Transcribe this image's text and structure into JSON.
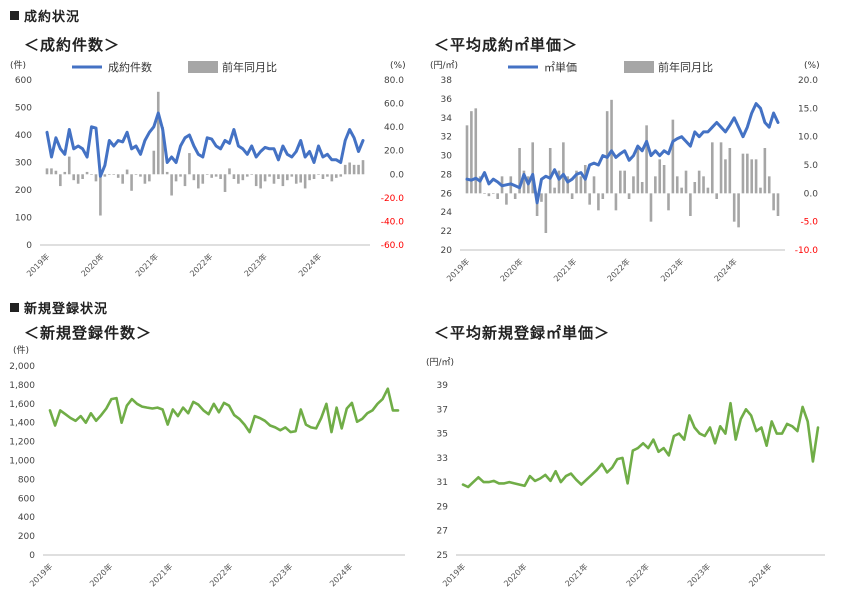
{
  "sections": {
    "contract": "成約状況",
    "registration": "新規登録状況"
  },
  "chart_data": [
    {
      "type": "line+bar",
      "title": "＜成約件数＞",
      "left_unit": "(件)",
      "right_unit": "(%)",
      "line_color": "#4472C4",
      "bar_color": "#A6A6A6",
      "legend": {
        "line": "成約件数",
        "bar": "前年同月比"
      },
      "ylim": [
        0,
        600
      ],
      "yticks": [
        "0",
        "100",
        "200",
        "300",
        "400",
        "500",
        "600"
      ],
      "y2lim": [
        -60,
        80
      ],
      "y2ticks": [
        "-60.0",
        "-40.0",
        "-20.0",
        "0.0",
        "20.0",
        "40.0",
        "60.0",
        "80.0"
      ],
      "x_labels": [
        "2019年",
        "2020年",
        "2021年",
        "2022年",
        "2023年",
        "2024年"
      ],
      "line": [
        410,
        320,
        390,
        350,
        330,
        420,
        350,
        360,
        350,
        320,
        430,
        425,
        250,
        290,
        380,
        360,
        380,
        375,
        410,
        350,
        360,
        330,
        380,
        410,
        430,
        480,
        420,
        300,
        320,
        300,
        360,
        390,
        400,
        360,
        330,
        320,
        390,
        385,
        360,
        350,
        380,
        370,
        420,
        360,
        350,
        330,
        360,
        320,
        340,
        355,
        350,
        350,
        310,
        360,
        330,
        320,
        340,
        380,
        320,
        340,
        300,
        360,
        320,
        330,
        310,
        310,
        300,
        380,
        420,
        390,
        340,
        380
      ],
      "bars": [
        5,
        5,
        3,
        -10,
        2,
        15,
        -5,
        -8,
        -4,
        2,
        0,
        -6,
        -35,
        -2,
        0,
        0,
        -3,
        -8,
        4,
        -14,
        0,
        -2,
        -8,
        -6,
        20,
        70,
        40,
        2,
        -18,
        -6,
        -2,
        -10,
        18,
        -5,
        -12,
        -8,
        0,
        -3,
        -2,
        -4,
        -15,
        5,
        -4,
        -8,
        -5,
        -2,
        0,
        -10,
        -12,
        -6,
        -2,
        -8,
        -4,
        -10,
        -5,
        -2,
        -8,
        -7,
        -12,
        -5,
        -4,
        0,
        -4,
        -2,
        -6,
        -3,
        -2,
        8,
        10,
        8,
        8,
        12
      ]
    },
    {
      "type": "line+bar",
      "title": "＜平均成約㎡単価＞",
      "left_unit": "(円/㎡)",
      "right_unit": "(%)",
      "line_color": "#4472C4",
      "bar_color": "#A6A6A6",
      "legend": {
        "line": "㎡単価",
        "bar": "前年同月比"
      },
      "ylim": [
        20,
        38
      ],
      "yticks": [
        "20",
        "22",
        "24",
        "26",
        "28",
        "30",
        "32",
        "34",
        "36",
        "38"
      ],
      "y2lim": [
        -10,
        20
      ],
      "y2ticks": [
        "-10.0",
        "-5.0",
        "0.0",
        "5.0",
        "10.0",
        "15.0",
        "20.0"
      ],
      "x_labels": [
        "2019年",
        "2020年",
        "2021年",
        "2022年",
        "2023年",
        "2024年"
      ],
      "line": [
        27.5,
        27.4,
        27.6,
        27.3,
        28.2,
        27.0,
        27.5,
        27.2,
        26.8,
        26.9,
        27.0,
        26.8,
        26.6,
        28.0,
        27.0,
        28.0,
        25.0,
        27.5,
        27.8,
        27.6,
        28.5,
        27.5,
        28.0,
        27.2,
        27.5,
        28.0,
        28.2,
        27.5,
        29.0,
        29.2,
        29.0,
        30.0,
        29.8,
        30.5,
        29.8,
        30.2,
        30.5,
        29.5,
        30.0,
        31.0,
        30.5,
        31.5,
        30.0,
        30.5,
        30.0,
        30.5,
        30.2,
        31.5,
        31.8,
        32.0,
        31.5,
        31.0,
        32.5,
        32.0,
        32.5,
        32.5,
        33.0,
        33.5,
        33.0,
        32.5,
        33.2,
        34.0,
        33.0,
        32.0,
        33.0,
        34.5,
        35.5,
        35.0,
        33.5,
        33.0,
        34.5,
        33.5
      ],
      "bars": [
        12,
        14.5,
        15,
        3,
        0,
        -0.5,
        0,
        -1,
        3,
        -2,
        3,
        -1,
        8,
        4,
        3,
        9,
        -4,
        -1.5,
        -7,
        8,
        1,
        4,
        9,
        3,
        -1,
        4,
        3,
        5,
        -2,
        3,
        -3,
        -1,
        14.5,
        16.5,
        -3,
        4,
        4,
        -1,
        3,
        8,
        2,
        12,
        -5,
        3,
        6,
        5,
        -3,
        13,
        3,
        1,
        4,
        -4,
        2,
        4,
        3,
        1,
        9,
        -1,
        9,
        6,
        8,
        -5,
        -6,
        7,
        7,
        6,
        6,
        1,
        8,
        3,
        -3,
        -4
      ]
    },
    {
      "type": "line",
      "title": "＜新規登録件数＞",
      "left_unit": "(件)",
      "line_color": "#70AD47",
      "ylim": [
        0,
        2000
      ],
      "yticks": [
        "0",
        "200",
        "400",
        "600",
        "800",
        "1,000",
        "1,200",
        "1,400",
        "1,600",
        "1,800",
        "2,000"
      ],
      "x_labels": [
        "2019年",
        "2020年",
        "2021年",
        "2022年",
        "2023年",
        "2024年"
      ],
      "line": [
        1530,
        1370,
        1530,
        1490,
        1450,
        1420,
        1470,
        1400,
        1500,
        1420,
        1480,
        1550,
        1650,
        1660,
        1400,
        1580,
        1650,
        1600,
        1570,
        1560,
        1550,
        1560,
        1540,
        1380,
        1540,
        1470,
        1560,
        1500,
        1620,
        1590,
        1530,
        1490,
        1600,
        1510,
        1610,
        1580,
        1480,
        1440,
        1380,
        1300,
        1470,
        1450,
        1420,
        1370,
        1350,
        1320,
        1350,
        1300,
        1310,
        1540,
        1380,
        1350,
        1340,
        1450,
        1600,
        1300,
        1560,
        1340,
        1550,
        1610,
        1410,
        1440,
        1500,
        1530,
        1600,
        1650,
        1760,
        1530,
        1530
      ]
    },
    {
      "type": "line",
      "title": "＜平均新規登録㎡単価＞",
      "left_unit": "(円/㎡)",
      "line_color": "#70AD47",
      "ylim": [
        25,
        39
      ],
      "yticks": [
        "25",
        "27",
        "29",
        "31",
        "33",
        "35",
        "37",
        "39"
      ],
      "x_labels": [
        "2019年",
        "2020年",
        "2021年",
        "2022年",
        "2023年",
        "2024年"
      ],
      "line": [
        30.8,
        30.6,
        31.0,
        31.4,
        31.0,
        31.0,
        31.1,
        30.9,
        30.9,
        31.0,
        30.9,
        30.8,
        30.7,
        31.5,
        31.1,
        31.3,
        31.6,
        31.1,
        31.9,
        31.0,
        31.5,
        31.7,
        31.2,
        30.8,
        31.2,
        31.6,
        32.0,
        32.5,
        31.8,
        32.2,
        32.9,
        33.0,
        30.9,
        33.6,
        33.8,
        34.2,
        33.8,
        34.5,
        33.5,
        33.8,
        33.2,
        34.8,
        35.0,
        34.5,
        36.5,
        35.5,
        35.0,
        34.8,
        35.5,
        34.2,
        35.6,
        35.0,
        37.5,
        34.5,
        36.2,
        37.0,
        36.5,
        35.2,
        35.5,
        34.0,
        36.0,
        35.0,
        35.0,
        35.8,
        35.6,
        35.2,
        37.2,
        36.0,
        32.7,
        35.5
      ]
    }
  ]
}
